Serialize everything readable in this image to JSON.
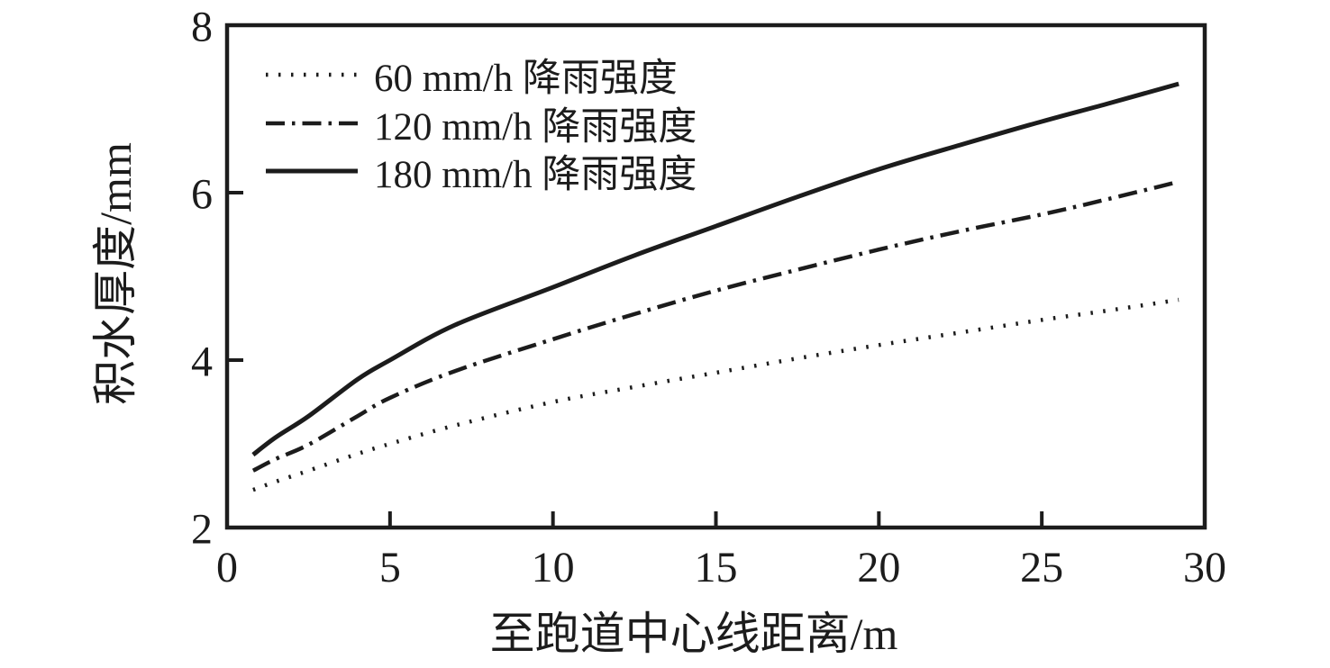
{
  "figure": {
    "background": "#ffffff",
    "ink_color": "#1c1c1c"
  },
  "chart_data": {
    "type": "line",
    "title": "",
    "xlabel": "至跑道中心线距离/m",
    "ylabel": "积水厚度/mm",
    "xlim": [
      0,
      30
    ],
    "ylim": [
      2,
      8
    ],
    "xticks": [
      0,
      5,
      10,
      15,
      20,
      25,
      30
    ],
    "yticks": [
      2,
      4,
      6,
      8
    ],
    "grid": false,
    "legend_position": "upper-left-inside",
    "series": [
      {
        "name": "60 mm/h 降雨强度",
        "style": "dotted",
        "points": [
          [
            0.8,
            2.45
          ],
          [
            1.5,
            2.55
          ],
          [
            2.5,
            2.68
          ],
          [
            4,
            2.88
          ],
          [
            5,
            3.0
          ],
          [
            7,
            3.22
          ],
          [
            10,
            3.5
          ],
          [
            12.5,
            3.68
          ],
          [
            15,
            3.85
          ],
          [
            17.5,
            4.02
          ],
          [
            20,
            4.18
          ],
          [
            22.5,
            4.33
          ],
          [
            25,
            4.48
          ],
          [
            27,
            4.59
          ],
          [
            29.2,
            4.72
          ]
        ]
      },
      {
        "name": "120 mm/h 降雨强度",
        "style": "dashdot",
        "points": [
          [
            0.8,
            2.68
          ],
          [
            1.5,
            2.82
          ],
          [
            2.5,
            2.99
          ],
          [
            4,
            3.33
          ],
          [
            5,
            3.55
          ],
          [
            7,
            3.87
          ],
          [
            10,
            4.25
          ],
          [
            12.5,
            4.55
          ],
          [
            15,
            4.83
          ],
          [
            17.5,
            5.08
          ],
          [
            20,
            5.32
          ],
          [
            22.5,
            5.54
          ],
          [
            25,
            5.74
          ],
          [
            27,
            5.92
          ],
          [
            29.2,
            6.13
          ]
        ]
      },
      {
        "name": "180 mm/h 降雨强度",
        "style": "solid",
        "points": [
          [
            0.8,
            2.87
          ],
          [
            1.5,
            3.08
          ],
          [
            2.5,
            3.33
          ],
          [
            4,
            3.77
          ],
          [
            5,
            4.0
          ],
          [
            7,
            4.42
          ],
          [
            10,
            4.87
          ],
          [
            12.5,
            5.25
          ],
          [
            15,
            5.6
          ],
          [
            17.5,
            5.95
          ],
          [
            20,
            6.28
          ],
          [
            22.5,
            6.57
          ],
          [
            25,
            6.85
          ],
          [
            27,
            7.06
          ],
          [
            29.2,
            7.3
          ]
        ]
      }
    ]
  }
}
